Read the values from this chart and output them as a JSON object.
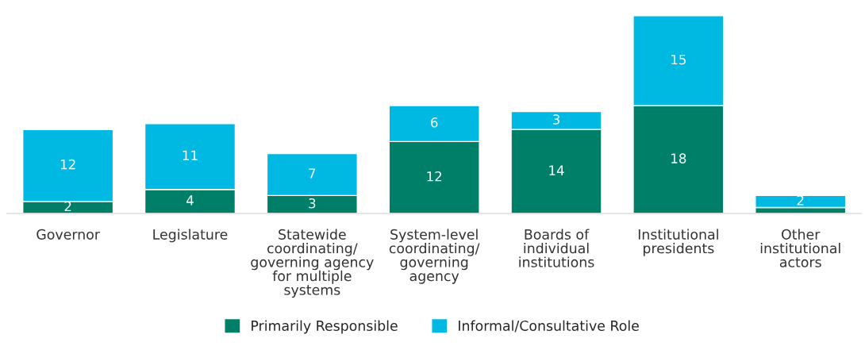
{
  "chart_data": {
    "type": "bar",
    "stacked": true,
    "categories": [
      "Governor",
      "Legislature",
      "Statewide\ncoordinating/\ngoverning agency\nfor multiple\nsystems",
      "System-level\ncoordinating/\ngoverning\nagency",
      "Boards of\nindividual\ninstitutions",
      "Institutional\npresidents",
      "Other\ninstitutional\nactors"
    ],
    "series": [
      {
        "name": "Primarily Responsible",
        "color": "#007f68",
        "values": [
          2,
          4,
          3,
          12,
          14,
          18,
          1
        ],
        "value_labels": [
          "2",
          "4",
          "3",
          "12",
          "14",
          "18",
          null
        ]
      },
      {
        "name": "Informal/Consultative Role",
        "color": "#00b9e2",
        "values": [
          12,
          11,
          7,
          6,
          3,
          15,
          2
        ],
        "value_labels": [
          "12",
          "11",
          "7",
          "6",
          "3",
          "15",
          "2"
        ]
      }
    ],
    "legend": "bottom",
    "grid": false
  }
}
